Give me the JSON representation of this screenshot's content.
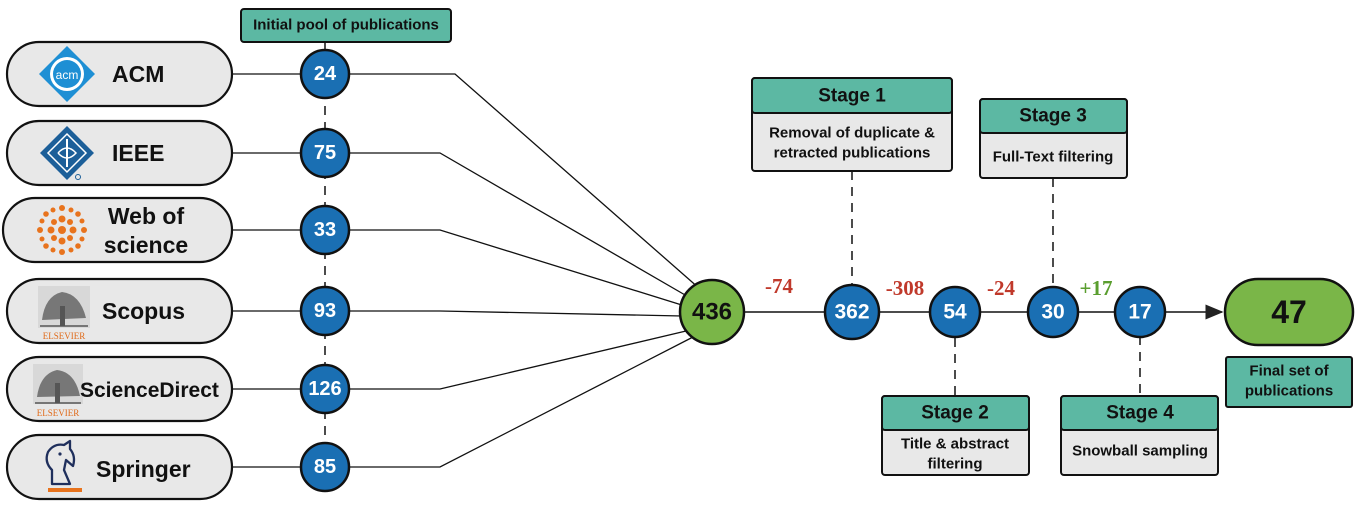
{
  "header": {
    "pool_label": "Initial pool of publications"
  },
  "databases": [
    {
      "id": "acm",
      "name": "ACM",
      "count": "24",
      "icon": "acm-logo-icon"
    },
    {
      "id": "ieee",
      "name": "IEEE",
      "count": "75",
      "icon": "ieee-logo-icon"
    },
    {
      "id": "wos",
      "name_line1": "Web of",
      "name_line2": "science",
      "count": "33",
      "icon": "web-of-science-logo-icon"
    },
    {
      "id": "scopus",
      "name": "Scopus",
      "count": "93",
      "icon": "elsevier-tree-icon",
      "publisher": "ELSEVIER"
    },
    {
      "id": "sciencedirect",
      "name": "ScienceDirect",
      "count": "126",
      "icon": "elsevier-tree-icon",
      "publisher": "ELSEVIER"
    },
    {
      "id": "springer",
      "name": "Springer",
      "count": "85",
      "icon": "springer-horse-icon"
    }
  ],
  "pipeline": {
    "total": "436",
    "nodes": [
      "362",
      "54",
      "30",
      "17"
    ],
    "deltas": [
      {
        "text": "-74",
        "color": "#c0392b"
      },
      {
        "text": "-308",
        "color": "#c0392b"
      },
      {
        "text": "-24",
        "color": "#c0392b"
      },
      {
        "text": "+17",
        "color": "#5a9e2f"
      }
    ],
    "final": "47",
    "final_label_line1": "Final set of",
    "final_label_line2": "publications"
  },
  "stages": [
    {
      "title": "Stage 1",
      "desc_line1": "Removal of duplicate  &",
      "desc_line2": "retracted publications"
    },
    {
      "title": "Stage 2",
      "desc_line1": "Title & abstract",
      "desc_line2": "filtering"
    },
    {
      "title": "Stage 3",
      "desc_line1": "Full-Text filtering"
    },
    {
      "title": "Stage 4",
      "desc_line1": "Snowball sampling"
    }
  ],
  "colors": {
    "teal": "#5cb8a3",
    "blue_node": "#1a6fb3",
    "green_node": "#7ab648",
    "pill_fill": "#e8e8e8",
    "box_fill": "#e8e8e8",
    "elsevier_orange": "#e06b1b",
    "springer_orange": "#e8731d"
  }
}
